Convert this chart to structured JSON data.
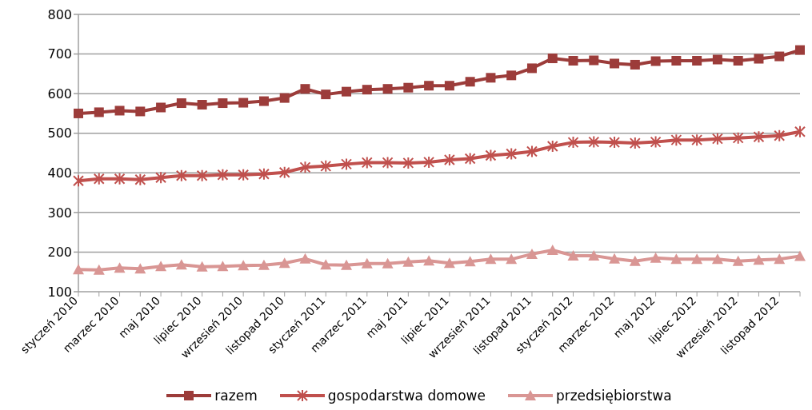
{
  "chart_data": {
    "type": "line",
    "categories": [
      "styczeń 2010",
      null,
      "marzec 2010",
      null,
      "maj 2010",
      null,
      "lipiec 2010",
      null,
      "wrzesień 2010",
      null,
      "listopad 2010",
      null,
      "styczeń 2011",
      null,
      "marzec 2011",
      null,
      "maj 2011",
      null,
      "lipiec 2011",
      null,
      "wrzesień 2011",
      null,
      "listopad 2011",
      null,
      "styczeń 2012",
      null,
      "marzec 2012",
      null,
      "maj 2012",
      null,
      "lipiec 2012",
      null,
      "wrzesień 2012",
      null,
      "listopad 2012",
      null
    ],
    "series": [
      {
        "name": "razem",
        "color": "#9c3c3a",
        "marker": "square",
        "values": [
          550,
          553,
          557,
          555,
          565,
          576,
          572,
          576,
          577,
          581,
          589,
          612,
          598,
          605,
          610,
          612,
          615,
          620,
          620,
          630,
          640,
          646,
          664,
          689,
          683,
          684,
          676,
          673,
          682,
          683,
          683,
          686,
          683,
          688,
          694,
          710
        ]
      },
      {
        "name": "gospodarstwa domowe",
        "color": "#c0504d",
        "marker": "cross",
        "values": [
          380,
          385,
          385,
          383,
          388,
          393,
          393,
          395,
          395,
          397,
          401,
          414,
          417,
          422,
          426,
          426,
          425,
          427,
          433,
          436,
          444,
          448,
          454,
          467,
          477,
          478,
          477,
          475,
          478,
          483,
          483,
          486,
          488,
          491,
          494,
          504
        ]
      },
      {
        "name": "przedsiębiorstwa",
        "color": "#d99694",
        "marker": "triangle",
        "values": [
          156,
          155,
          160,
          158,
          164,
          168,
          163,
          164,
          166,
          167,
          172,
          183,
          168,
          167,
          171,
          171,
          175,
          178,
          172,
          176,
          182,
          182,
          195,
          205,
          191,
          191,
          183,
          177,
          185,
          182,
          182,
          182,
          177,
          180,
          182,
          190
        ]
      }
    ],
    "ylim": [
      100,
      800
    ],
    "yticks": [
      100,
      200,
      300,
      400,
      500,
      600,
      700,
      800
    ],
    "grid": "y",
    "legend": "bottom"
  }
}
